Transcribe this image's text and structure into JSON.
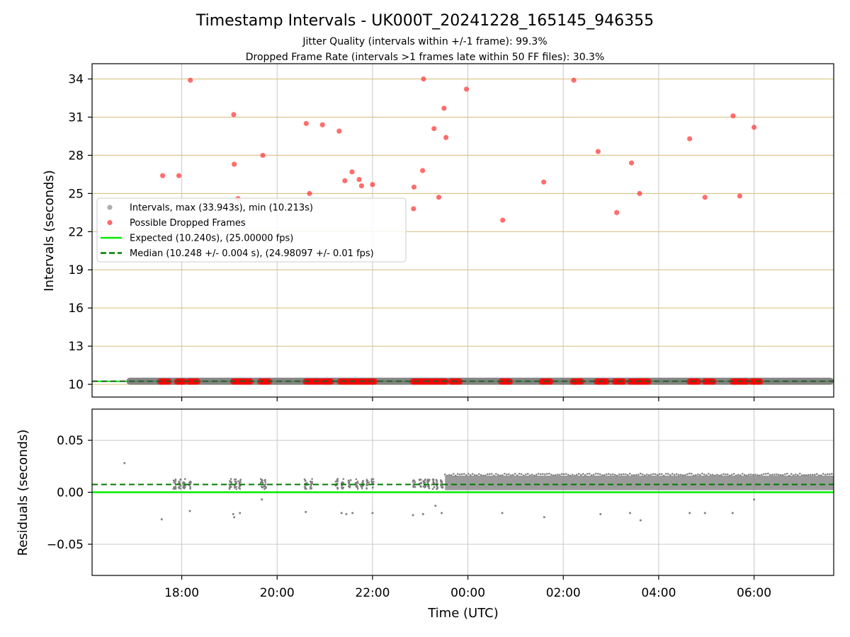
{
  "chart_data": {
    "type": "scatter",
    "title": "Timestamp Intervals - UK000T_20241228_165145_946355",
    "subtitle_lines": [
      "Jitter Quality (intervals within +/-1 frame): 99.3%",
      "Dropped Frame Rate (intervals >1 frames late within 50 FF files): 30.3%"
    ],
    "xlabel": "Time (UTC)",
    "x_tick_labels": [
      "18:00",
      "20:00",
      "22:00",
      "00:00",
      "02:00",
      "04:00",
      "06:00"
    ],
    "x_ticks_hours_from_1800": [
      0,
      2,
      4,
      6,
      8,
      10,
      12
    ],
    "xlim_hours_from_1800": [
      -1.88,
      13.67
    ],
    "colors": {
      "gray_points": "#808080",
      "dropped": "#ff0000",
      "expected": "#00ee00",
      "median": "#007a00",
      "hgrid_top": "#d4bc7a",
      "vgrid": "#c8c8c8"
    },
    "panels": [
      {
        "name": "intervals",
        "ylabel": "Intervals (seconds)",
        "ylim": [
          9,
          35.2
        ],
        "y_ticks": [
          10,
          13,
          16,
          19,
          22,
          25,
          28,
          31,
          34
        ],
        "y_tick_labels": [
          "10",
          "13",
          "16",
          "19",
          "22",
          "25",
          "28",
          "31",
          "34"
        ],
        "grid": true,
        "expected_line": 10.24,
        "median_line": 10.248,
        "legend": {
          "position": "center-left",
          "entries": [
            {
              "label": "Intervals, max (33.943s), min (10.213s)",
              "kind": "dot",
              "color": "#a0a0a0"
            },
            {
              "label": "Possible Dropped Frames",
              "kind": "dot",
              "color": "#ff5050"
            },
            {
              "label": "Expected (10.240s), (25.00000 fps)",
              "kind": "line",
              "color": "#00ee00"
            },
            {
              "label": "Median (10.248 +/- 0.004 s), (24.98097 +/- 0.01 fps)",
              "kind": "dashed",
              "color": "#007a00"
            }
          ]
        },
        "gray_band": {
          "x_start": -1.16,
          "x_end": 13.67,
          "y": 10.248
        },
        "dropped_points_high": [
          [
            -0.4,
            26.4
          ],
          [
            -0.06,
            26.4
          ],
          [
            0.18,
            33.9
          ],
          [
            1.09,
            31.2
          ],
          [
            1.1,
            27.3
          ],
          [
            1.18,
            24.6
          ],
          [
            1.7,
            28.0
          ],
          [
            2.61,
            30.5
          ],
          [
            2.68,
            25.0
          ],
          [
            2.95,
            30.4
          ],
          [
            3.3,
            29.9
          ],
          [
            3.42,
            26.0
          ],
          [
            3.57,
            26.7
          ],
          [
            3.72,
            26.1
          ],
          [
            3.77,
            25.6
          ],
          [
            4.0,
            25.7
          ],
          [
            4.87,
            25.5
          ],
          [
            4.86,
            23.8
          ],
          [
            5.05,
            26.8
          ],
          [
            5.07,
            34.0
          ],
          [
            5.29,
            30.1
          ],
          [
            5.39,
            24.7
          ],
          [
            5.5,
            31.7
          ],
          [
            5.54,
            29.4
          ],
          [
            5.97,
            33.2
          ],
          [
            6.73,
            22.9
          ],
          [
            7.59,
            25.9
          ],
          [
            8.22,
            33.9
          ],
          [
            8.73,
            28.3
          ],
          [
            9.12,
            23.5
          ],
          [
            9.43,
            27.4
          ],
          [
            9.6,
            25.0
          ],
          [
            10.65,
            29.3
          ],
          [
            10.97,
            24.7
          ],
          [
            11.56,
            31.1
          ],
          [
            11.7,
            24.8
          ],
          [
            12.0,
            30.2
          ]
        ],
        "dropped_clusters_at_10_2": [
          [
            -0.45,
            -0.25
          ],
          [
            -0.1,
            0.05
          ],
          [
            0.15,
            0.35
          ],
          [
            1.08,
            1.45
          ],
          [
            1.65,
            1.85
          ],
          [
            2.6,
            2.9
          ],
          [
            2.95,
            3.15
          ],
          [
            3.32,
            4.05
          ],
          [
            4.85,
            5.55
          ],
          [
            5.65,
            5.85
          ],
          [
            6.7,
            6.9
          ],
          [
            7.55,
            7.75
          ],
          [
            8.2,
            8.4
          ],
          [
            8.7,
            8.92
          ],
          [
            9.08,
            9.28
          ],
          [
            9.4,
            9.8
          ],
          [
            10.65,
            10.85
          ],
          [
            10.97,
            11.15
          ],
          [
            11.55,
            11.85
          ],
          [
            11.95,
            12.15
          ]
        ]
      },
      {
        "name": "residuals",
        "ylabel": "Residuals (seconds)",
        "ylim": [
          -0.08,
          0.08
        ],
        "y_ticks": [
          -0.05,
          0,
          0.05
        ],
        "y_tick_labels": [
          "−0.05",
          "0.00",
          "0.05"
        ],
        "grid": true,
        "expected_line": 0,
        "median_line": 0.0075,
        "sparse_clusters_x": [
          -0.15,
          -0.05,
          0.05,
          0.17,
          1.02,
          1.13,
          1.21,
          1.68,
          1.75,
          2.6,
          2.72,
          3.25,
          3.37,
          3.52,
          3.67,
          3.78,
          3.9,
          4.0,
          4.87,
          5.0,
          5.09,
          5.17,
          5.27,
          5.36,
          5.45
        ],
        "dense_band": {
          "x_start": 5.52,
          "x_end": 13.67,
          "y_min": 0.002,
          "y_max": 0.016
        },
        "outliers": [
          [
            -1.2,
            0.028
          ],
          [
            -0.42,
            -0.026
          ],
          [
            0.17,
            -0.018
          ],
          [
            1.08,
            -0.021
          ],
          [
            1.1,
            -0.024
          ],
          [
            1.22,
            -0.02
          ],
          [
            1.68,
            -0.007
          ],
          [
            2.6,
            -0.019
          ],
          [
            3.35,
            -0.02
          ],
          [
            3.45,
            -0.021
          ],
          [
            3.58,
            -0.02
          ],
          [
            4.0,
            -0.02
          ],
          [
            4.85,
            -0.022
          ],
          [
            5.06,
            -0.021
          ],
          [
            5.32,
            -0.013
          ],
          [
            5.45,
            -0.02
          ],
          [
            6.72,
            -0.02
          ],
          [
            7.6,
            -0.024
          ],
          [
            8.78,
            -0.021
          ],
          [
            9.4,
            -0.02
          ],
          [
            9.62,
            -0.027
          ],
          [
            10.65,
            -0.02
          ],
          [
            10.97,
            -0.02
          ],
          [
            11.55,
            -0.02
          ],
          [
            12.0,
            -0.007
          ]
        ]
      }
    ]
  }
}
